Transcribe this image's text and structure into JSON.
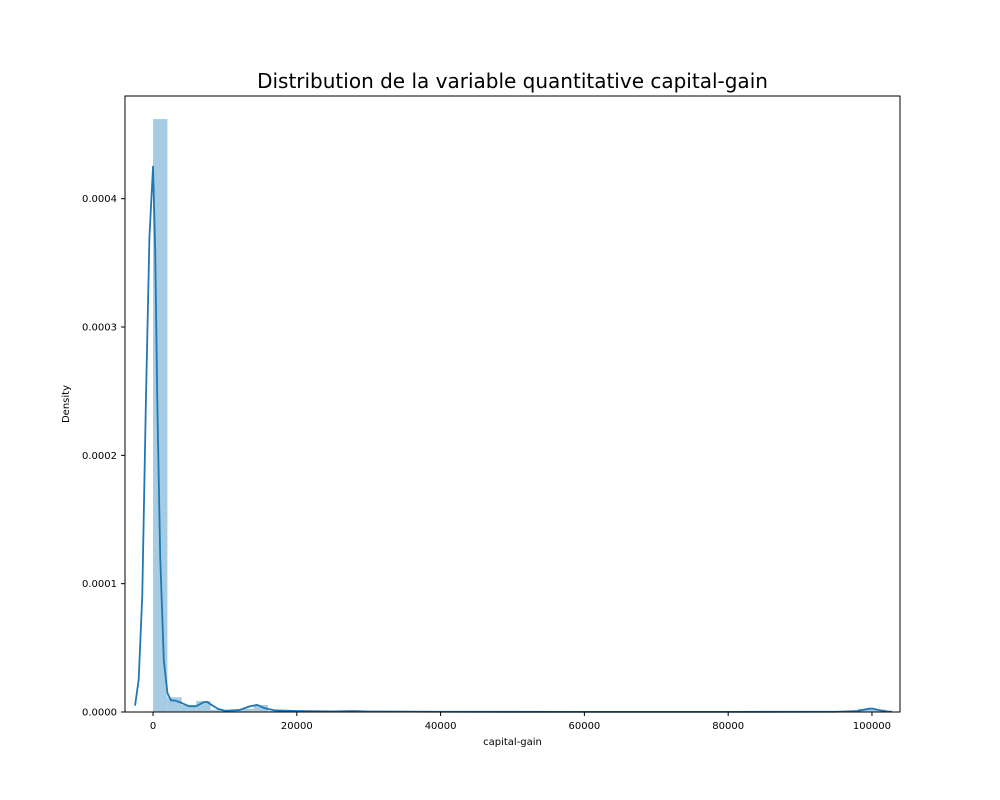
{
  "chart_data": {
    "type": "bar",
    "title": "Distribution de la variable quantitative capital-gain",
    "xlabel": "capital-gain",
    "ylabel": "Density",
    "xlim": [
      -3900,
      103900
    ],
    "ylim": [
      0,
      0.00048
    ],
    "x_ticks": [
      0,
      20000,
      40000,
      60000,
      80000,
      100000
    ],
    "x_tick_labels": [
      "0",
      "20000",
      "40000",
      "60000",
      "80000",
      "100000"
    ],
    "y_ticks": [
      0,
      0.0001,
      0.0002,
      0.0003,
      0.0004
    ],
    "y_tick_labels": [
      "0.0000",
      "0.0001",
      "0.0002",
      "0.0003",
      "0.0004"
    ],
    "grid": false,
    "legend": "none",
    "bar_color": "#a6cce3",
    "line_color": "#1f77b4",
    "histogram": {
      "bin_width": 2000,
      "bins": [
        {
          "x0": 0,
          "x1": 2000,
          "density": 0.000462
        },
        {
          "x0": 2000,
          "x1": 4000,
          "density": 1.15e-05
        },
        {
          "x0": 4000,
          "x1": 6000,
          "density": 5.5e-06
        },
        {
          "x0": 6000,
          "x1": 8000,
          "density": 8.5e-06
        },
        {
          "x0": 8000,
          "x1": 10000,
          "density": 1.8e-06
        },
        {
          "x0": 10000,
          "x1": 12000,
          "density": 8e-07
        },
        {
          "x0": 12000,
          "x1": 14000,
          "density": 2.5e-06
        },
        {
          "x0": 14000,
          "x1": 16000,
          "density": 5.5e-06
        },
        {
          "x0": 16000,
          "x1": 18000,
          "density": 8e-07
        },
        {
          "x0": 18000,
          "x1": 20000,
          "density": 6e-07
        },
        {
          "x0": 20000,
          "x1": 22000,
          "density": 5e-07
        },
        {
          "x0": 24000,
          "x1": 26000,
          "density": 4e-07
        },
        {
          "x0": 26000,
          "x1": 28000,
          "density": 8e-07
        },
        {
          "x0": 34000,
          "x1": 36000,
          "density": 3e-07
        },
        {
          "x0": 40000,
          "x1": 42000,
          "density": 2e-07
        },
        {
          "x0": 98000,
          "x1": 100000,
          "density": 2.5e-06
        },
        {
          "x0": 100000,
          "x1": 102000,
          "density": 1.8e-06
        }
      ]
    },
    "kde": {
      "x": [
        -2500,
        -2000,
        -1500,
        -1000,
        -500,
        0,
        300,
        600,
        1000,
        1500,
        2000,
        2500,
        3000,
        4000,
        5000,
        6000,
        7000,
        7500,
        8000,
        9000,
        10000,
        12000,
        13500,
        14500,
        15500,
        17000,
        20000,
        25000,
        28000,
        30000,
        40000,
        60000,
        80000,
        95000,
        98000,
        99500,
        100000,
        101000,
        102000,
        102800
      ],
      "y": [
        5e-06,
        2.5e-05,
        9e-05,
        0.00024,
        0.00037,
        0.000425,
        0.00036,
        0.00024,
        0.00012,
        4e-05,
        1.5e-05,
        9e-06,
        9e-06,
        7e-06,
        4.5e-06,
        4.5e-06,
        7.5e-06,
        8e-06,
        6e-06,
        2.5e-06,
        1e-06,
        1.5e-06,
        4.5e-06,
        5.5e-06,
        3e-06,
        1.2e-06,
        8e-07,
        5e-07,
        8e-07,
        4e-07,
        2e-07,
        1e-07,
        1e-07,
        2e-07,
        8e-07,
        2.5e-06,
        2.7e-06,
        1.5e-06,
        5e-07,
        2e-07
      ]
    }
  }
}
